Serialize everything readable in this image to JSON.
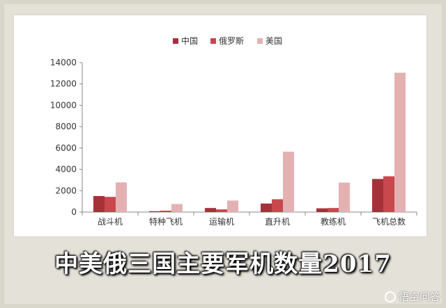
{
  "caption": "中美俄三国主要军机数量2017",
  "watermark": "悟空问答",
  "colors": {
    "china": "#a53239",
    "russia": "#c8484d",
    "usa": "#e4b1b3",
    "axis": "#888888",
    "grid": "#e6e6e6"
  },
  "chart_data": {
    "type": "bar",
    "categories": [
      "战斗机",
      "特种飞机",
      "运输机",
      "直升机",
      "教练机",
      "飞机总数"
    ],
    "series": [
      {
        "name": "中国",
        "values": [
          1500,
          80,
          380,
          800,
          350,
          3100
        ]
      },
      {
        "name": "俄罗斯",
        "values": [
          1420,
          130,
          250,
          1200,
          380,
          3350
        ]
      },
      {
        "name": "美国",
        "values": [
          2780,
          750,
          1080,
          5650,
          2760,
          13050
        ]
      }
    ],
    "ylim": [
      0,
      14000
    ],
    "yticks": [
      "0",
      "2000",
      "4000",
      "6000",
      "8000",
      "10000",
      "12000",
      "14000"
    ],
    "grid": false,
    "legend_position": "top"
  }
}
